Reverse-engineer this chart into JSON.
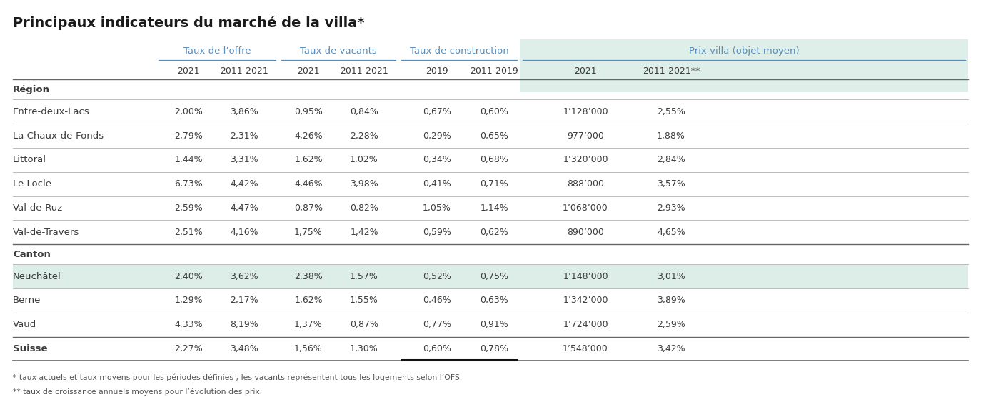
{
  "title": "Principaux indicateurs du marché de la villa*",
  "footnote1": "* taux actuels et taux moyens pour les périodes définies ; les vacants représentent tous les logements selon l’OFS.",
  "footnote2": "** taux de croissance annuels moyens pour l’évolution des prix.",
  "col_headers": [
    "2021",
    "2011-2021",
    "2021",
    "2011-2021",
    "2019",
    "2011-2019",
    "2021",
    "2011-2021**"
  ],
  "group_labels": [
    "Taux de l’offre",
    "Taux de vacants",
    "Taux de construction",
    "Prix villa (objet moyen)"
  ],
  "rows": [
    {
      "label": "Région",
      "bold": true,
      "section": true,
      "highlight": false,
      "values": [
        "",
        "",
        "",
        "",
        "",
        "",
        "",
        ""
      ]
    },
    {
      "label": "Entre-deux-Lacs",
      "bold": false,
      "section": false,
      "highlight": false,
      "values": [
        "2,00%",
        "3,86%",
        "0,95%",
        "0,84%",
        "0,67%",
        "0,60%",
        "1’128’000",
        "2,55%"
      ]
    },
    {
      "label": "La Chaux-de-Fonds",
      "bold": false,
      "section": false,
      "highlight": false,
      "values": [
        "2,79%",
        "2,31%",
        "4,26%",
        "2,28%",
        "0,29%",
        "0,65%",
        "977’000",
        "1,88%"
      ]
    },
    {
      "label": "Littoral",
      "bold": false,
      "section": false,
      "highlight": false,
      "values": [
        "1,44%",
        "3,31%",
        "1,62%",
        "1,02%",
        "0,34%",
        "0,68%",
        "1’320’000",
        "2,84%"
      ]
    },
    {
      "label": "Le Locle",
      "bold": false,
      "section": false,
      "highlight": false,
      "values": [
        "6,73%",
        "4,42%",
        "4,46%",
        "3,98%",
        "0,41%",
        "0,71%",
        "888’000",
        "3,57%"
      ]
    },
    {
      "label": "Val-de-Ruz",
      "bold": false,
      "section": false,
      "highlight": false,
      "values": [
        "2,59%",
        "4,47%",
        "0,87%",
        "0,82%",
        "1,05%",
        "1,14%",
        "1’068’000",
        "2,93%"
      ]
    },
    {
      "label": "Val-de-Travers",
      "bold": false,
      "section": false,
      "highlight": false,
      "values": [
        "2,51%",
        "4,16%",
        "1,75%",
        "1,42%",
        "0,59%",
        "0,62%",
        "890’000",
        "4,65%"
      ]
    },
    {
      "label": "Canton",
      "bold": true,
      "section": true,
      "highlight": false,
      "values": [
        "",
        "",
        "",
        "",
        "",
        "",
        "",
        ""
      ]
    },
    {
      "label": "Neuchâtel",
      "bold": false,
      "section": false,
      "highlight": true,
      "values": [
        "2,40%",
        "3,62%",
        "2,38%",
        "1,57%",
        "0,52%",
        "0,75%",
        "1’148’000",
        "3,01%"
      ]
    },
    {
      "label": "Berne",
      "bold": false,
      "section": false,
      "highlight": false,
      "values": [
        "1,29%",
        "2,17%",
        "1,62%",
        "1,55%",
        "0,46%",
        "0,63%",
        "1’342’000",
        "3,89%"
      ]
    },
    {
      "label": "Vaud",
      "bold": false,
      "section": false,
      "highlight": false,
      "values": [
        "4,33%",
        "8,19%",
        "1,37%",
        "0,87%",
        "0,77%",
        "0,91%",
        "1’724’000",
        "2,59%"
      ]
    },
    {
      "label": "Suisse",
      "bold": true,
      "section": false,
      "highlight": false,
      "values": [
        "2,27%",
        "3,48%",
        "1,56%",
        "1,30%",
        "0,60%",
        "0,78%",
        "1’548’000",
        "3,42%"
      ]
    }
  ],
  "highlight_color": "#ddeee9",
  "prix_bg_color": "#deeee9",
  "text_color": "#3c3c3c",
  "blue_color": "#5b8db8",
  "title_color": "#1a1a1a",
  "light_line_color": "#bbbbbb",
  "dark_line_color": "#666666",
  "suisse_underline_color": "#222222"
}
